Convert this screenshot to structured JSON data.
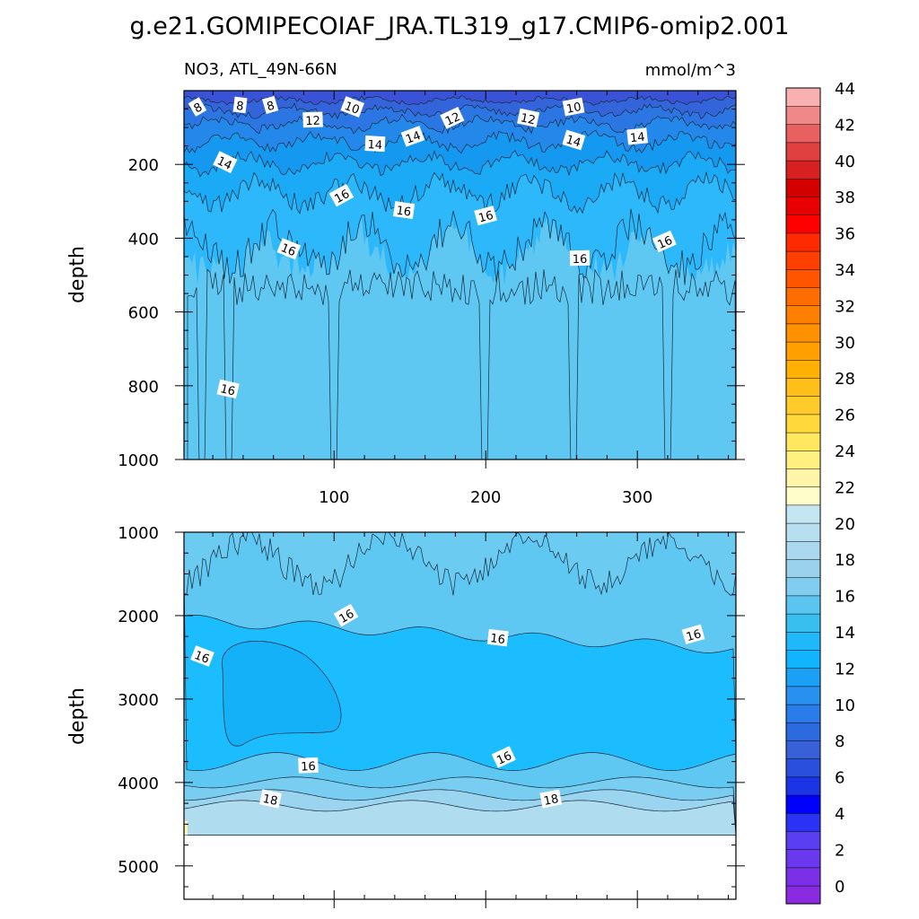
{
  "chart_data": {
    "type": "heatmap",
    "title": "g.e21.GOMIPECOIAF_JRA.TL319_g17.CMIP6-omip2.001",
    "variable_label": "NO3, ATL_49N-66N",
    "units": "mmol/m^3",
    "x": {
      "label": "",
      "range": [
        1,
        365
      ],
      "ticks": [
        100,
        200,
        300
      ],
      "tick_labels": [
        "100",
        "200",
        "300"
      ]
    },
    "panels": [
      {
        "name": "upper",
        "ylabel": "depth",
        "yrange": [
          0,
          1000
        ],
        "yticks": [
          200,
          400,
          600,
          800,
          1000
        ],
        "ytick_labels": [
          "200",
          "400",
          "600",
          "800",
          "1000"
        ],
        "contour_labels": [
          {
            "text": "8",
            "day": 10,
            "depth": 45
          },
          {
            "text": "8",
            "day": 38,
            "depth": 40
          },
          {
            "text": "8",
            "day": 58,
            "depth": 40
          },
          {
            "text": "10",
            "day": 112,
            "depth": 45
          },
          {
            "text": "12",
            "day": 86,
            "depth": 80
          },
          {
            "text": "12",
            "day": 178,
            "depth": 75
          },
          {
            "text": "12",
            "day": 228,
            "depth": 75
          },
          {
            "text": "10",
            "day": 258,
            "depth": 45
          },
          {
            "text": "14",
            "day": 28,
            "depth": 195
          },
          {
            "text": "14",
            "day": 127,
            "depth": 145
          },
          {
            "text": "14",
            "day": 152,
            "depth": 125
          },
          {
            "text": "14",
            "day": 258,
            "depth": 135
          },
          {
            "text": "14",
            "day": 300,
            "depth": 125
          },
          {
            "text": "16",
            "day": 105,
            "depth": 285
          },
          {
            "text": "16",
            "day": 146,
            "depth": 325
          },
          {
            "text": "16",
            "day": 200,
            "depth": 340
          },
          {
            "text": "16",
            "day": 70,
            "depth": 430
          },
          {
            "text": "16",
            "day": 262,
            "depth": 455
          },
          {
            "text": "16",
            "day": 318,
            "depth": 410
          },
          {
            "text": "16",
            "day": 30,
            "depth": 810
          }
        ]
      },
      {
        "name": "lower",
        "ylabel": "depth",
        "yrange": [
          1000,
          5400
        ],
        "yticks": [
          1000,
          2000,
          3000,
          4000,
          5000
        ],
        "ytick_labels": [
          "1000",
          "2000",
          "3000",
          "4000",
          "5000"
        ],
        "no_data_below_depth": 4630,
        "contour_labels": [
          {
            "text": "16",
            "day": 108,
            "depth": 2000
          },
          {
            "text": "16",
            "day": 208,
            "depth": 2270
          },
          {
            "text": "16",
            "day": 337,
            "depth": 2230
          },
          {
            "text": "16",
            "day": 13,
            "depth": 2490
          },
          {
            "text": "16",
            "day": 83,
            "depth": 3800
          },
          {
            "text": "16",
            "day": 212,
            "depth": 3700
          },
          {
            "text": "18",
            "day": 58,
            "depth": 4200
          },
          {
            "text": "18",
            "day": 243,
            "depth": 4200
          }
        ]
      }
    ],
    "colorbar": {
      "levels": [
        0,
        2,
        4,
        6,
        8,
        10,
        12,
        14,
        16,
        18,
        20,
        22,
        24,
        26,
        28,
        30,
        32,
        34,
        36,
        38,
        40,
        42,
        44
      ],
      "labels": [
        "0",
        "2",
        "4",
        "6",
        "8",
        "10",
        "12",
        "14",
        "16",
        "18",
        "20",
        "22",
        "24",
        "26",
        "28",
        "30",
        "32",
        "34",
        "36",
        "38",
        "40",
        "42",
        "44"
      ],
      "colors": [
        "#8a2be2",
        "#7b30e8",
        "#6a38ee",
        "#5a3ff2",
        "#2a32f5",
        "#0000ff",
        "#1a34e6",
        "#2850dd",
        "#3860d8",
        "#2c6ae0",
        "#2a7ce8",
        "#2790f0",
        "#1aa0f5",
        "#10b4ff",
        "#20b8f8",
        "#38bff0",
        "#5ac6f0",
        "#80cdf0",
        "#9ad2ee",
        "#aad8ef",
        "#b8dfef",
        "#c4e6f2",
        "#ffffcc",
        "#fff5a8",
        "#fff080",
        "#ffe860",
        "#ffd83a",
        "#ffcb2a",
        "#ffbf1a",
        "#ffb000",
        "#ffa000",
        "#ff9000",
        "#ff7f00",
        "#ff6c00",
        "#ff5500",
        "#ff3f00",
        "#ff2a00",
        "#ff0000",
        "#e80000",
        "#d40000",
        "#d82020",
        "#e04040",
        "#e86060",
        "#f08888",
        "#f8b0b0"
      ]
    }
  }
}
